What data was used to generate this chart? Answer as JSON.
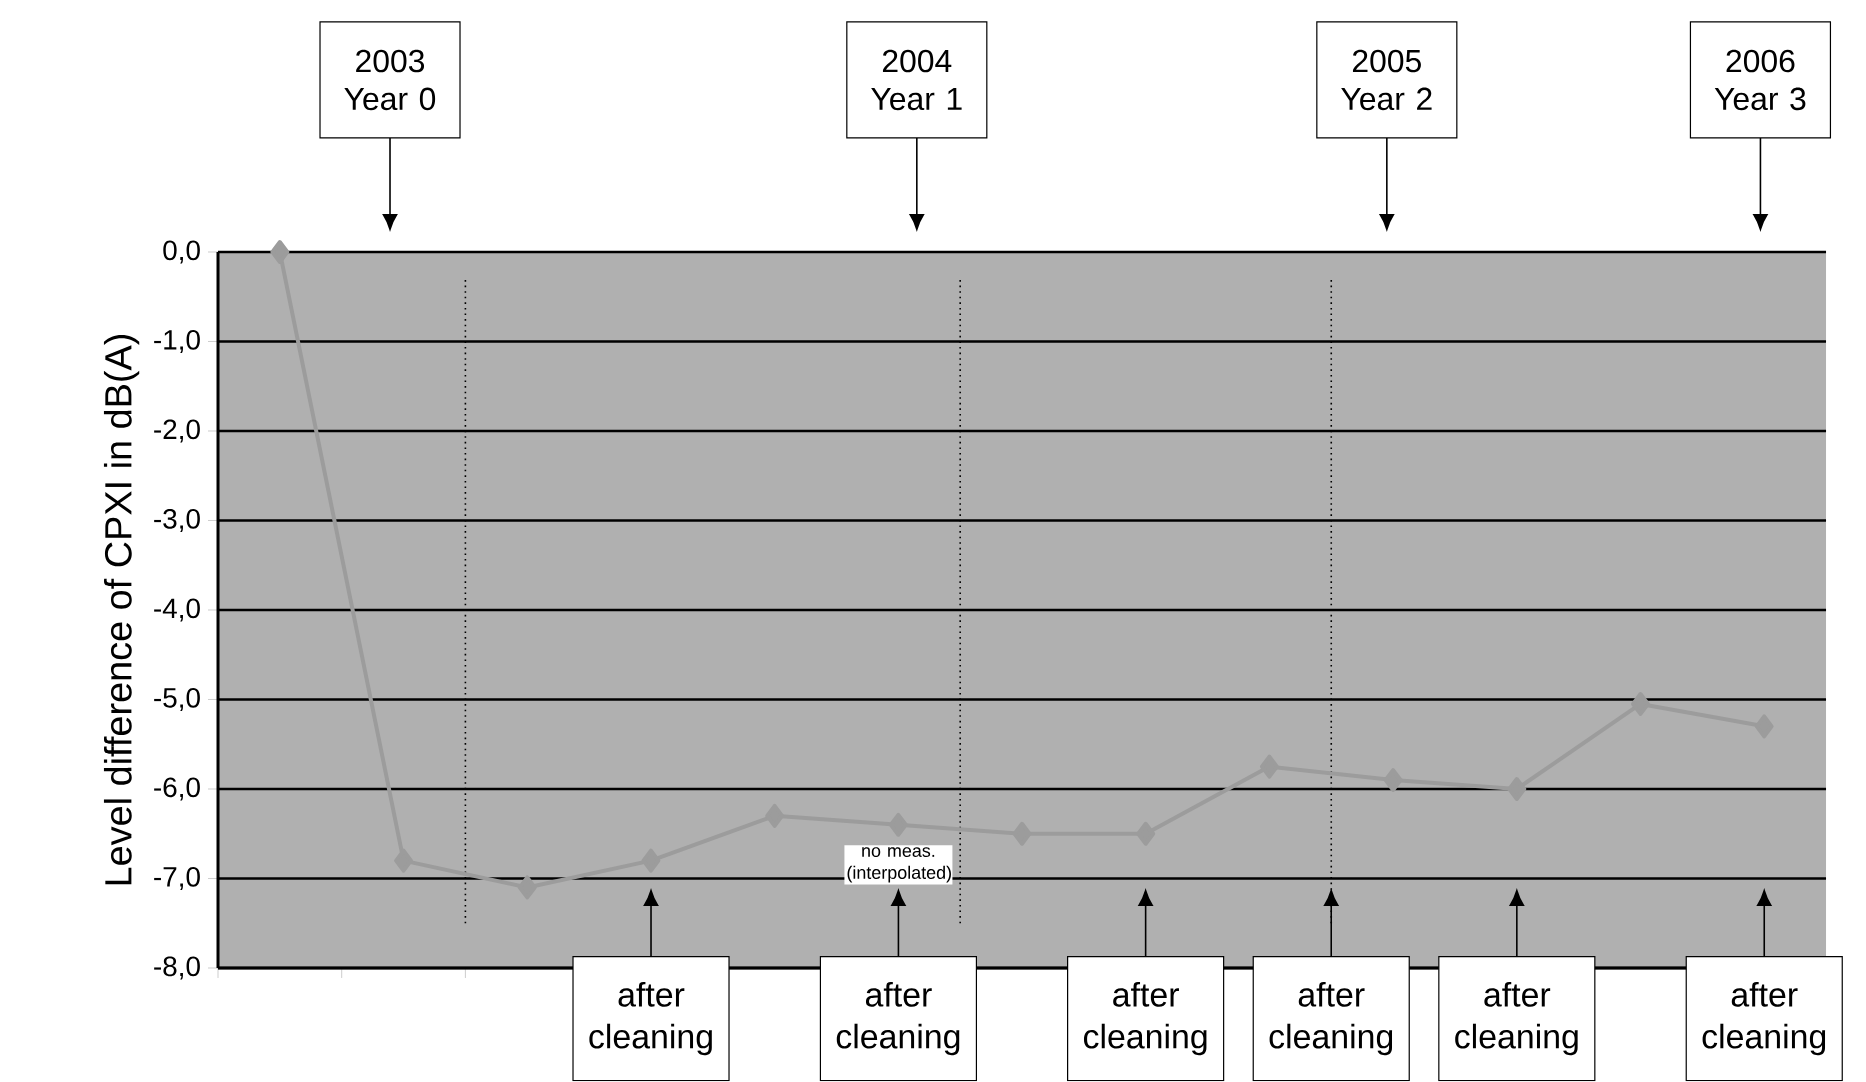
{
  "chart_data": {
    "type": "line",
    "ylabel": "Level difference of CPXI in dB(A)",
    "categories": [
      null,
      null,
      null,
      null,
      null,
      null,
      null,
      null,
      null,
      null,
      null,
      null,
      null
    ],
    "series": [
      {
        "color": "#9c9c9c",
        "values": [
          0.0,
          -6.8,
          -7.1,
          -6.8,
          -6.3,
          -6.4,
          -6.5,
          -6.5,
          -5.75,
          -5.9,
          -6.0,
          -5.05,
          -5.3
        ]
      }
    ],
    "ylim": [
      -8,
      0
    ],
    "yticks": [
      {
        "value": 0,
        "label": "0,0"
      },
      {
        "value": -1,
        "label": "-1,0"
      },
      {
        "value": -2,
        "label": "-2,0"
      },
      {
        "value": -3,
        "label": "-3,0"
      },
      {
        "value": -4,
        "label": "-4,0"
      },
      {
        "value": -5,
        "label": "-5,0"
      },
      {
        "value": -6,
        "label": "-6,0"
      },
      {
        "value": -7,
        "label": "-7,0"
      },
      {
        "value": -8,
        "label": "-8,0"
      }
    ],
    "grid": "y",
    "marker": "diamond",
    "line_style": "solid",
    "tick_labels": "y",
    "annotations": [
      "2003 Year 0",
      "2004 Year 1",
      "2005 Year 2",
      "2006 Year 3",
      "after cleaning",
      "after cleaning",
      "after cleaning",
      "after cleaning",
      "after cleaning",
      "after cleaning",
      "no meas. (interpolated)"
    ]
  }
}
